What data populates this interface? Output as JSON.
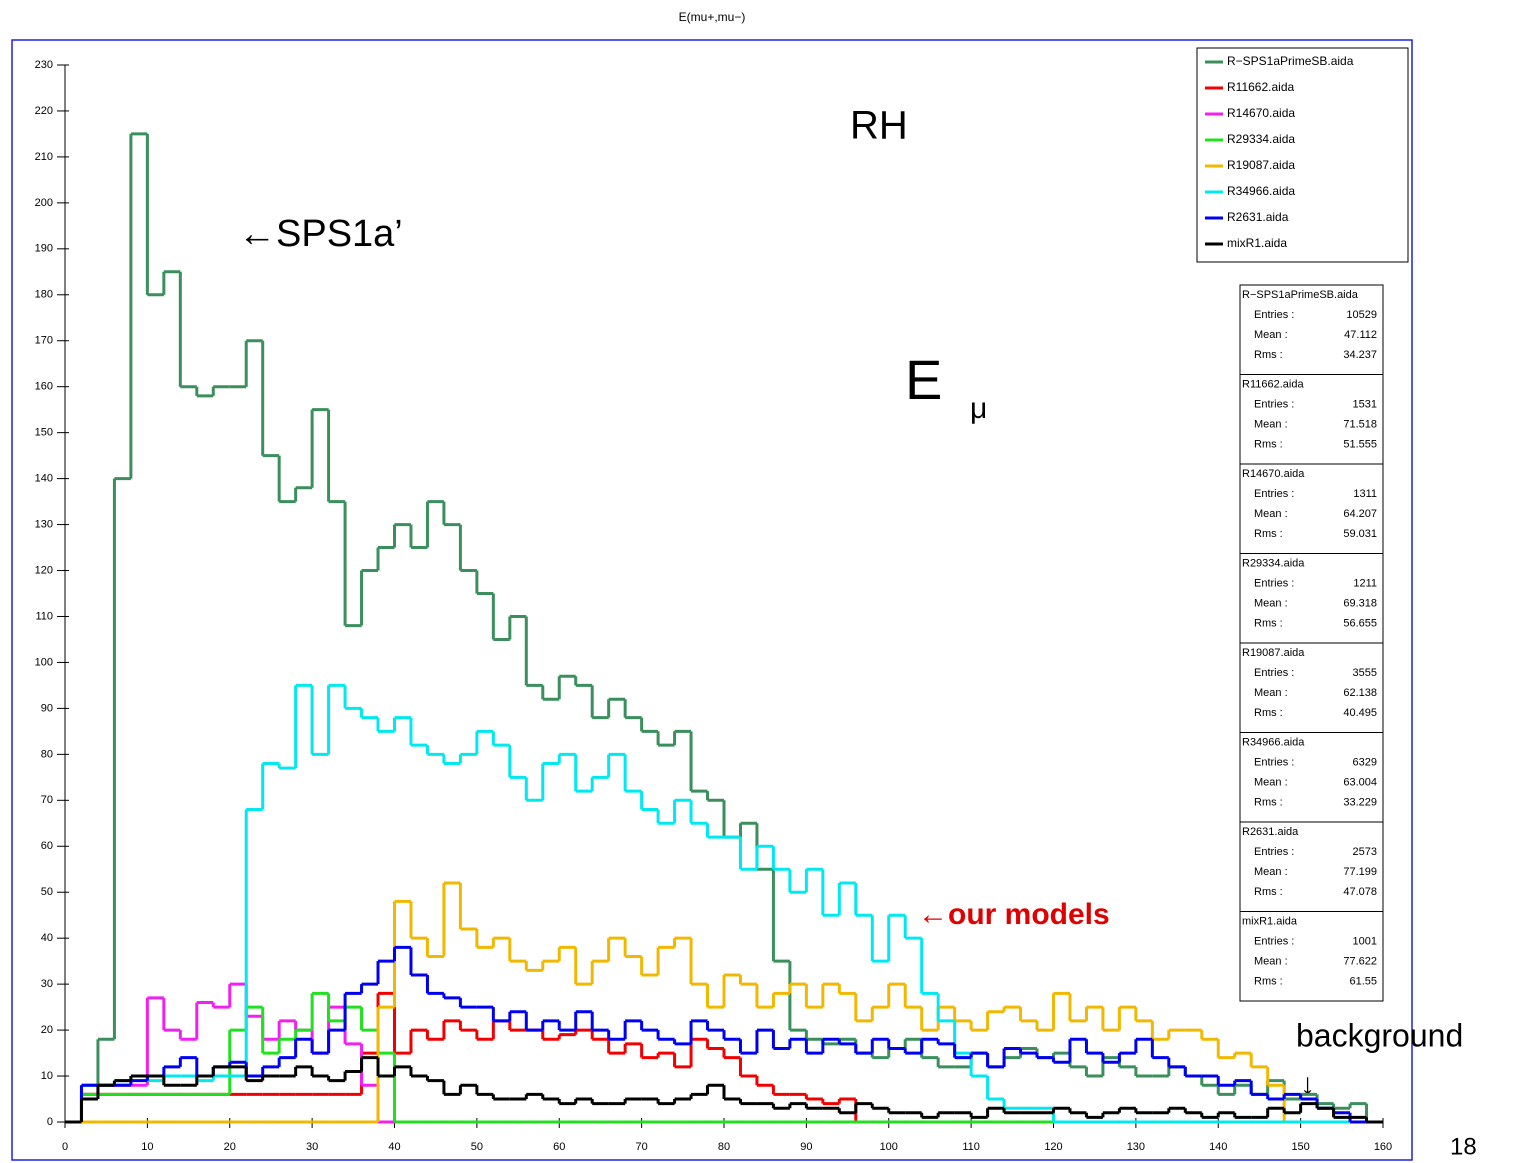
{
  "chart_data": {
    "type": "histogram",
    "title": "E(mu+,mu−)",
    "bins": [
      0,
      2,
      4,
      6,
      8,
      10,
      12,
      14,
      16,
      18,
      20,
      22,
      24,
      26,
      28,
      30,
      32,
      34,
      36,
      38,
      40,
      42,
      44,
      46,
      48,
      50,
      52,
      54,
      56,
      58,
      60,
      62,
      64,
      66,
      68,
      70,
      72,
      74,
      76,
      78,
      80,
      82,
      84,
      86,
      88,
      90,
      92,
      94,
      96,
      98,
      100,
      102,
      104,
      106,
      108,
      110,
      112,
      114,
      116,
      118,
      120,
      122,
      124,
      126,
      128,
      130,
      132,
      134,
      136,
      138,
      140,
      142,
      144,
      146,
      148,
      150,
      152,
      154,
      156,
      158,
      160
    ],
    "xlim": [
      0,
      160
    ],
    "xticks": [
      0,
      10,
      20,
      30,
      40,
      50,
      60,
      70,
      80,
      90,
      100,
      110,
      120,
      130,
      140,
      150,
      160
    ],
    "ylim": [
      0,
      230
    ],
    "yticks": [
      0,
      10,
      20,
      30,
      40,
      50,
      60,
      70,
      80,
      90,
      100,
      110,
      120,
      130,
      140,
      150,
      160,
      170,
      180,
      190,
      200,
      210,
      220,
      230
    ],
    "series": [
      {
        "name": "R−SPS1aPrimeSB.aida",
        "color": "#3a8f5c",
        "values": [
          0,
          8,
          18,
          140,
          215,
          180,
          185,
          160,
          158,
          160,
          160,
          170,
          145,
          135,
          138,
          155,
          135,
          108,
          120,
          125,
          130,
          125,
          135,
          130,
          120,
          115,
          105,
          110,
          95,
          92,
          97,
          95,
          88,
          92,
          88,
          85,
          82,
          85,
          72,
          70,
          62,
          65,
          55,
          35,
          20,
          18,
          17,
          18,
          15,
          14,
          16,
          18,
          14,
          12,
          12,
          15,
          12,
          14,
          16,
          14,
          15,
          12,
          10,
          14,
          12,
          10,
          10,
          12,
          10,
          8,
          6,
          8,
          6,
          9,
          5,
          6,
          4,
          3,
          4,
          0
        ]
      },
      {
        "name": "R11662.aida",
        "color": "#f00000",
        "values": [
          0,
          6,
          6,
          6,
          6,
          6,
          6,
          6,
          6,
          6,
          6,
          6,
          6,
          6,
          6,
          6,
          6,
          6,
          15,
          28,
          15,
          20,
          18,
          22,
          20,
          18,
          22,
          20,
          20,
          18,
          19,
          20,
          18,
          15,
          17,
          14,
          15,
          12,
          18,
          16,
          14,
          10,
          8,
          6,
          6,
          5,
          4,
          5,
          0,
          0,
          0,
          0,
          0,
          0,
          0,
          0,
          0,
          0,
          0,
          0,
          0,
          0,
          0,
          0,
          0,
          0,
          0,
          0,
          0,
          0,
          0,
          0,
          0,
          0,
          0,
          0,
          0,
          0,
          0,
          0
        ]
      },
      {
        "name": "R14670.aida",
        "color": "#f020f0",
        "values": [
          0,
          6,
          8,
          8,
          8,
          27,
          20,
          18,
          26,
          25,
          30,
          23,
          18,
          22,
          20,
          15,
          25,
          17,
          8,
          0,
          0,
          0,
          0,
          0,
          0,
          0,
          0,
          0,
          0,
          0,
          0,
          0,
          0,
          0,
          0,
          0,
          0,
          0,
          0,
          0,
          0,
          0,
          0,
          0,
          0,
          0,
          0,
          0,
          0,
          0,
          0,
          0,
          0,
          0,
          0,
          0,
          0,
          0,
          0,
          0,
          0,
          0,
          0,
          0,
          0,
          0,
          0,
          0,
          0,
          0,
          0,
          0,
          0,
          0,
          0,
          0,
          0,
          0,
          0,
          0
        ]
      },
      {
        "name": "R29334.aida",
        "color": "#20e020",
        "values": [
          0,
          6,
          6,
          6,
          6,
          6,
          6,
          6,
          6,
          6,
          20,
          25,
          15,
          18,
          20,
          28,
          22,
          25,
          20,
          15,
          0,
          0,
          0,
          0,
          0,
          0,
          0,
          0,
          0,
          0,
          0,
          0,
          0,
          0,
          0,
          0,
          0,
          0,
          0,
          0,
          0,
          0,
          0,
          0,
          0,
          0,
          0,
          0,
          0,
          0,
          0,
          0,
          0,
          0,
          0,
          0,
          0,
          0,
          0,
          0,
          0,
          0,
          0,
          0,
          0,
          0,
          0,
          0,
          0,
          0,
          0,
          0,
          0,
          0,
          0,
          0,
          0,
          0,
          0,
          0
        ]
      },
      {
        "name": "R19087.aida",
        "color": "#f0b800",
        "values": [
          0,
          0,
          0,
          0,
          0,
          0,
          0,
          0,
          0,
          0,
          0,
          0,
          0,
          0,
          0,
          0,
          0,
          0,
          0,
          25,
          48,
          40,
          36,
          52,
          42,
          38,
          40,
          35,
          33,
          35,
          38,
          30,
          35,
          40,
          36,
          32,
          38,
          40,
          30,
          25,
          32,
          30,
          25,
          28,
          30,
          25,
          30,
          28,
          22,
          25,
          30,
          25,
          20,
          25,
          22,
          20,
          24,
          25,
          22,
          20,
          28,
          22,
          25,
          20,
          25,
          22,
          18,
          20,
          20,
          18,
          14,
          15,
          12,
          8,
          0,
          0,
          0,
          0,
          0,
          0
        ]
      },
      {
        "name": "R34966.aida",
        "color": "#00e8f0",
        "values": [
          0,
          8,
          8,
          9,
          10,
          9,
          10,
          10,
          9,
          10,
          10,
          68,
          78,
          77,
          95,
          80,
          95,
          90,
          88,
          85,
          88,
          82,
          80,
          78,
          80,
          85,
          82,
          75,
          70,
          78,
          80,
          72,
          75,
          80,
          72,
          68,
          65,
          70,
          65,
          62,
          62,
          55,
          60,
          55,
          50,
          55,
          45,
          52,
          45,
          35,
          45,
          40,
          28,
          22,
          15,
          10,
          5,
          3,
          3,
          3,
          0,
          0,
          0,
          0,
          0,
          0,
          0,
          0,
          0,
          0,
          0,
          0,
          0,
          0,
          0,
          0,
          0,
          0,
          0,
          0
        ]
      },
      {
        "name": "R2631.aida",
        "color": "#0000f0",
        "values": [
          0,
          8,
          8,
          8,
          9,
          10,
          12,
          14,
          10,
          12,
          13,
          10,
          12,
          14,
          18,
          15,
          20,
          28,
          30,
          35,
          38,
          32,
          28,
          27,
          25,
          25,
          22,
          24,
          20,
          22,
          20,
          24,
          20,
          18,
          22,
          20,
          18,
          17,
          22,
          20,
          18,
          15,
          20,
          16,
          18,
          15,
          18,
          17,
          15,
          18,
          16,
          15,
          18,
          17,
          14,
          15,
          12,
          16,
          15,
          14,
          13,
          18,
          15,
          13,
          15,
          18,
          14,
          12,
          10,
          10,
          8,
          9,
          6,
          5,
          6,
          5,
          3,
          2,
          0,
          0
        ]
      },
      {
        "name": "mixR1.aida",
        "color": "#000000",
        "values": [
          0,
          5,
          8,
          9,
          10,
          10,
          8,
          8,
          10,
          12,
          12,
          9,
          10,
          10,
          12,
          10,
          9,
          11,
          14,
          10,
          12,
          10,
          9,
          6,
          8,
          6,
          5,
          5,
          6,
          5,
          4,
          5,
          4,
          4,
          5,
          5,
          4,
          5,
          6,
          8,
          5,
          4,
          4,
          3,
          4,
          3,
          3,
          2,
          4,
          3,
          2,
          2,
          1,
          2,
          2,
          1,
          3,
          2,
          2,
          2,
          3,
          2,
          1,
          2,
          3,
          2,
          2,
          3,
          2,
          1,
          2,
          1,
          1,
          3,
          2,
          4,
          3,
          1,
          1,
          0
        ]
      }
    ],
    "stats_labels": [
      "Entries :",
      "Mean :",
      "Rms :"
    ],
    "stats": [
      {
        "name": "R−SPS1aPrimeSB.aida",
        "entries": 10529,
        "mean": 47.112,
        "rms": 34.237
      },
      {
        "name": "R11662.aida",
        "entries": 1531,
        "mean": 71.518,
        "rms": 51.555
      },
      {
        "name": "R14670.aida",
        "entries": 1311,
        "mean": 64.207,
        "rms": 59.031
      },
      {
        "name": "R29334.aida",
        "entries": 1211,
        "mean": 69.318,
        "rms": 56.655
      },
      {
        "name": "R19087.aida",
        "entries": 3555,
        "mean": 62.138,
        "rms": 40.495
      },
      {
        "name": "R34966.aida",
        "entries": 6329,
        "mean": 63.004,
        "rms": 33.229
      },
      {
        "name": "R2631.aida",
        "entries": 2573,
        "mean": 77.199,
        "rms": 47.078
      },
      {
        "name": "mixR1.aida",
        "entries": 1001,
        "mean": 77.622,
        "rms": 61.55
      }
    ],
    "annotations": {
      "rh": "RH",
      "sps": "←SPS1a’",
      "e": "E",
      "mu": "μ",
      "models": "←our models",
      "background": "background",
      "arrow": "↓"
    },
    "page_number": "18"
  }
}
